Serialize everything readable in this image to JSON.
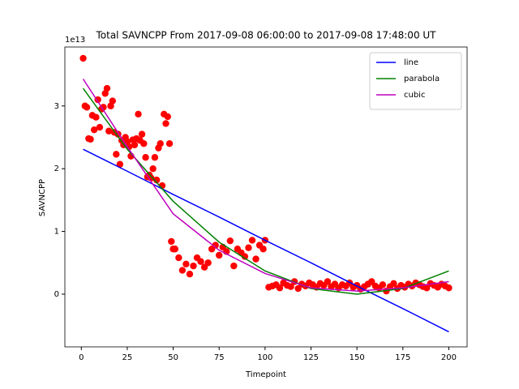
{
  "chart_data": {
    "type": "scatter",
    "title": "Total SAVNCPP From 2017-09-08 06:00:00 to 2017-09-08 17:48:00 UT",
    "xlabel": "Timepoint",
    "ylabel": "SAVNCPP",
    "y_offset_label": "1e13",
    "xlim": [
      -8.95,
      209.95
    ],
    "ylim": [
      -0.84,
      3.94
    ],
    "xticks": [
      0,
      25,
      50,
      75,
      100,
      125,
      150,
      175,
      200
    ],
    "yticks": [
      0,
      1,
      2,
      3
    ],
    "legend": "upper right",
    "points": {
      "color": "#ff0000",
      "x": [
        1,
        2,
        3,
        4,
        5,
        6,
        7,
        8,
        9,
        10,
        11,
        12,
        13,
        14,
        15,
        16,
        17,
        18,
        19,
        20,
        21,
        22,
        23,
        24,
        25,
        26,
        27,
        28,
        29,
        30,
        31,
        32,
        33,
        34,
        35,
        36,
        37,
        38,
        39,
        40,
        41,
        42,
        43,
        44,
        45,
        46,
        47,
        48,
        49,
        50,
        51,
        53,
        55,
        57,
        59,
        61,
        63,
        65,
        67,
        69,
        71,
        73,
        75,
        77,
        79,
        81,
        83,
        85,
        87,
        89,
        91,
        93,
        95,
        97,
        99,
        100,
        102,
        104,
        106,
        108,
        110,
        112,
        114,
        116,
        118,
        120,
        122,
        124,
        126,
        128,
        130,
        132,
        134,
        136,
        138,
        140,
        142,
        144,
        146,
        148,
        150,
        152,
        154,
        156,
        158,
        160,
        162,
        164,
        166,
        168,
        170,
        172,
        174,
        176,
        178,
        180,
        182,
        184,
        186,
        188,
        190,
        192,
        194,
        196,
        198,
        200
      ],
      "values": [
        3.76,
        3.0,
        2.98,
        2.48,
        2.47,
        2.85,
        2.62,
        2.82,
        3.1,
        2.66,
        2.95,
        2.98,
        3.2,
        3.28,
        2.6,
        3.0,
        3.08,
        2.58,
        2.23,
        2.55,
        2.07,
        2.45,
        2.38,
        2.5,
        2.43,
        2.35,
        2.2,
        2.46,
        2.38,
        2.48,
        2.87,
        2.45,
        2.55,
        2.4,
        2.18,
        1.87,
        1.9,
        1.85,
        2.0,
        2.18,
        1.82,
        2.33,
        2.4,
        1.73,
        2.87,
        2.72,
        2.83,
        2.4,
        0.84,
        0.72,
        0.72,
        0.58,
        0.38,
        0.48,
        0.32,
        0.45,
        0.58,
        0.52,
        0.43,
        0.5,
        0.72,
        0.78,
        0.62,
        0.75,
        0.68,
        0.85,
        0.45,
        0.72,
        0.66,
        0.6,
        0.74,
        0.86,
        0.56,
        0.78,
        0.72,
        0.86,
        0.11,
        0.13,
        0.15,
        0.1,
        0.18,
        0.14,
        0.12,
        0.2,
        0.09,
        0.16,
        0.13,
        0.18,
        0.15,
        0.11,
        0.17,
        0.14,
        0.2,
        0.12,
        0.16,
        0.1,
        0.15,
        0.13,
        0.18,
        0.11,
        0.14,
        0.08,
        0.12,
        0.16,
        0.2,
        0.13,
        0.1,
        0.15,
        0.05,
        0.12,
        0.17,
        0.09,
        0.14,
        0.11,
        0.16,
        0.13,
        0.18,
        0.15,
        0.12,
        0.1,
        0.17,
        0.14,
        0.11,
        0.16,
        0.13,
        0.1
      ]
    },
    "series": [
      {
        "name": "line",
        "color": "#0000ff",
        "x": [
          1,
          25,
          50,
          75,
          100,
          125,
          150,
          175,
          200
        ],
        "values": [
          2.31,
          1.96,
          1.59,
          1.23,
          0.86,
          0.5,
          0.13,
          -0.23,
          -0.6
        ]
      },
      {
        "name": "parabola",
        "color": "#008000",
        "x": [
          1,
          25,
          50,
          75,
          100,
          125,
          150,
          175,
          200
        ],
        "values": [
          3.28,
          2.31,
          1.48,
          0.83,
          0.37,
          0.09,
          0.0,
          0.09,
          0.37
        ]
      },
      {
        "name": "cubic",
        "color": "#bf00bf",
        "x": [
          1,
          25,
          50,
          75,
          100,
          125,
          150,
          175,
          200
        ],
        "values": [
          3.43,
          2.35,
          1.28,
          0.7,
          0.33,
          0.1,
          0.05,
          0.1,
          0.2
        ]
      }
    ]
  }
}
